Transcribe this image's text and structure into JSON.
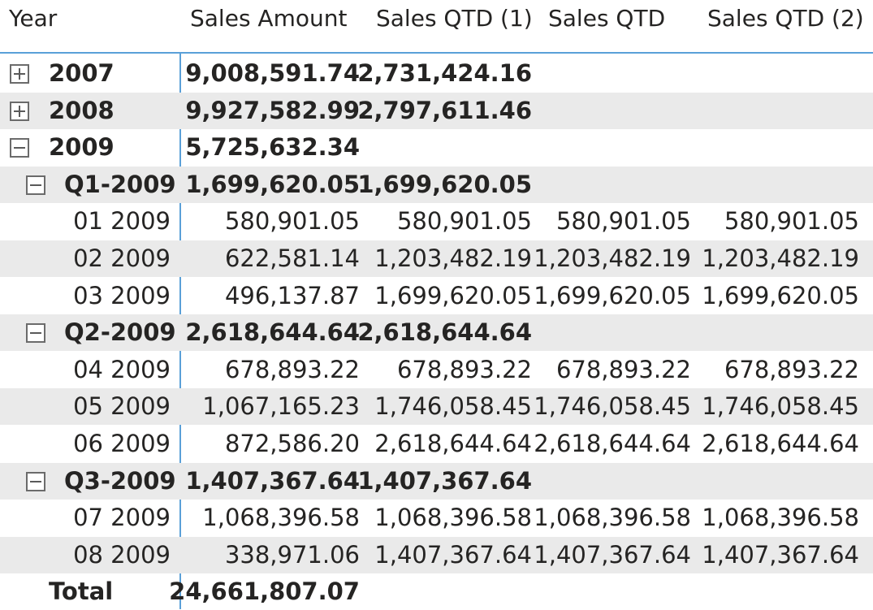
{
  "columns": [
    "Year",
    "Sales Amount",
    "Sales QTD (1)",
    "Sales QTD",
    "Sales QTD (2)"
  ],
  "rows": [
    {
      "level": "year",
      "label": "2007",
      "toggle": "expand",
      "shade": false,
      "values": [
        "9,008,591.74",
        "2,731,424.16",
        "",
        ""
      ]
    },
    {
      "level": "year",
      "label": "2008",
      "toggle": "expand",
      "shade": true,
      "values": [
        "9,927,582.99",
        "2,797,611.46",
        "",
        ""
      ]
    },
    {
      "level": "year",
      "label": "2009",
      "toggle": "collapse",
      "shade": false,
      "values": [
        "5,725,632.34",
        "",
        "",
        ""
      ]
    },
    {
      "level": "quarter",
      "label": "Q1-2009",
      "toggle": "collapse",
      "shade": true,
      "values": [
        "1,699,620.05",
        "1,699,620.05",
        "",
        ""
      ]
    },
    {
      "level": "month",
      "label": "01 2009",
      "shade": false,
      "values": [
        "580,901.05",
        "580,901.05",
        "580,901.05",
        "580,901.05"
      ]
    },
    {
      "level": "month",
      "label": "02 2009",
      "shade": true,
      "values": [
        "622,581.14",
        "1,203,482.19",
        "1,203,482.19",
        "1,203,482.19"
      ]
    },
    {
      "level": "month",
      "label": "03 2009",
      "shade": false,
      "values": [
        "496,137.87",
        "1,699,620.05",
        "1,699,620.05",
        "1,699,620.05"
      ]
    },
    {
      "level": "quarter",
      "label": "Q2-2009",
      "toggle": "collapse",
      "shade": true,
      "values": [
        "2,618,644.64",
        "2,618,644.64",
        "",
        ""
      ]
    },
    {
      "level": "month",
      "label": "04 2009",
      "shade": false,
      "values": [
        "678,893.22",
        "678,893.22",
        "678,893.22",
        "678,893.22"
      ]
    },
    {
      "level": "month",
      "label": "05 2009",
      "shade": true,
      "values": [
        "1,067,165.23",
        "1,746,058.45",
        "1,746,058.45",
        "1,746,058.45"
      ]
    },
    {
      "level": "month",
      "label": "06 2009",
      "shade": false,
      "values": [
        "872,586.20",
        "2,618,644.64",
        "2,618,644.64",
        "2,618,644.64"
      ]
    },
    {
      "level": "quarter",
      "label": "Q3-2009",
      "toggle": "collapse",
      "shade": true,
      "values": [
        "1,407,367.64",
        "1,407,367.64",
        "",
        ""
      ]
    },
    {
      "level": "month",
      "label": "07 2009",
      "shade": false,
      "values": [
        "1,068,396.58",
        "1,068,396.58",
        "1,068,396.58",
        "1,068,396.58"
      ]
    },
    {
      "level": "month",
      "label": "08 2009",
      "shade": true,
      "values": [
        "338,971.06",
        "1,407,367.64",
        "1,407,367.64",
        "1,407,367.64"
      ]
    },
    {
      "level": "total",
      "label": "Total",
      "shade": false,
      "values": [
        "24,661,807.07",
        "",
        "",
        ""
      ]
    }
  ],
  "colors": {
    "accent_line": "#5aa0d8",
    "row_shade": "#eaeaea",
    "text": "#252423"
  }
}
